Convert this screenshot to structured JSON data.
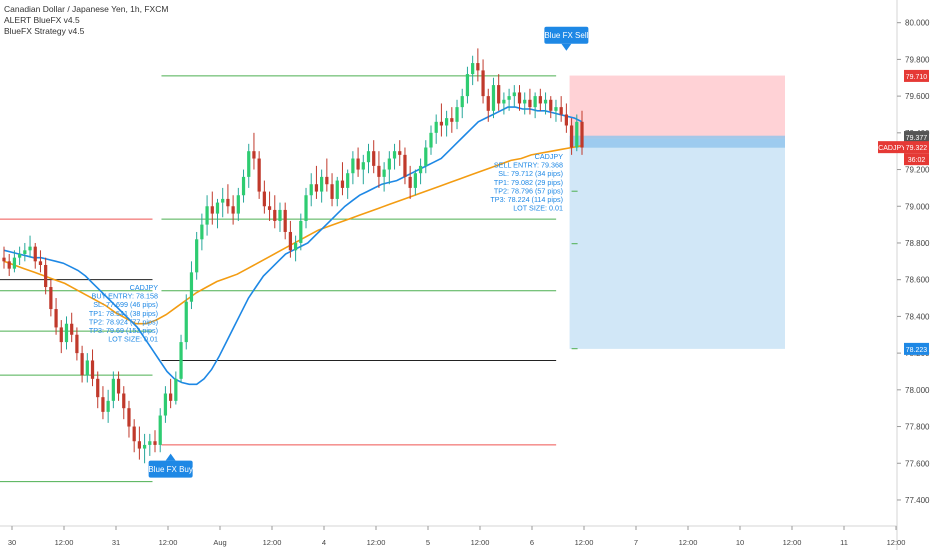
{
  "header": {
    "symbol_title": "Canadian Dollar / Japanese Yen, 1h, FXCM",
    "indicators": [
      "ALERT BlueFX v4.5",
      "BlueFX Strategy v4.5"
    ]
  },
  "colors": {
    "bull": "#26a69a",
    "bull_body": "#2ecc71",
    "bear": "#c0392b",
    "fast_ma": "#1e88e5",
    "slow_ma": "#f39c12",
    "sl_line": "#ef5350",
    "tp_line": "#4caf50",
    "entry_line": "#222222",
    "signal_box": "#1e88e5",
    "loss_zone": "#ffcdd2",
    "profit_zone": "#cfe6f7",
    "annotation_text": "#1e88e5",
    "red_tag": "#e53935",
    "blue_tag": "#1e88e5",
    "gray_tag": "#555555"
  },
  "chart_data": {
    "type": "candlestick",
    "x_axis_labels": [
      "30",
      "12:00",
      "31",
      "12:00",
      "Aug",
      "12:00",
      "4",
      "12:00",
      "5",
      "12:00",
      "6",
      "12:00",
      "7",
      "12:00",
      "10",
      "12:00",
      "11",
      "12:00"
    ],
    "y_ticks": [
      "80.000",
      "79.800",
      "79.600",
      "79.400",
      "79.200",
      "79.000",
      "78.800",
      "78.600",
      "78.400",
      "78.200",
      "78.000",
      "77.800",
      "77.600",
      "77.400"
    ],
    "y_range": [
      77.28,
      80.08
    ],
    "price_tags": [
      {
        "label": "",
        "value": "79.710",
        "kind": "red"
      },
      {
        "label": "",
        "value": "79.377",
        "kind": "gray"
      },
      {
        "label": "CADJPY",
        "value": "79.322",
        "kind": "red",
        "sub": "36:02"
      },
      {
        "label": "",
        "value": "78.223",
        "kind": "blue"
      }
    ],
    "candles_ohlc": [
      [
        78.72,
        78.78,
        78.66,
        78.7
      ],
      [
        78.7,
        78.74,
        78.62,
        78.66
      ],
      [
        78.66,
        78.76,
        78.64,
        78.72
      ],
      [
        78.72,
        78.78,
        78.68,
        78.74
      ],
      [
        78.74,
        78.8,
        78.7,
        78.76
      ],
      [
        78.76,
        78.84,
        78.72,
        78.78
      ],
      [
        78.78,
        78.8,
        78.66,
        78.7
      ],
      [
        78.7,
        78.76,
        78.64,
        78.68
      ],
      [
        78.68,
        78.72,
        78.52,
        78.56
      ],
      [
        78.56,
        78.6,
        78.4,
        78.44
      ],
      [
        78.44,
        78.5,
        78.3,
        78.34
      ],
      [
        78.34,
        78.38,
        78.2,
        78.26
      ],
      [
        78.26,
        78.4,
        78.22,
        78.36
      ],
      [
        78.36,
        78.42,
        78.26,
        78.3
      ],
      [
        78.3,
        78.34,
        78.16,
        78.2
      ],
      [
        78.2,
        78.24,
        78.04,
        78.08
      ],
      [
        78.08,
        78.2,
        78.04,
        78.16
      ],
      [
        78.16,
        78.22,
        78.02,
        78.06
      ],
      [
        78.06,
        78.1,
        77.9,
        77.96
      ],
      [
        77.96,
        78.02,
        77.84,
        77.88
      ],
      [
        77.88,
        78.0,
        77.82,
        77.94
      ],
      [
        77.94,
        78.1,
        77.9,
        78.06
      ],
      [
        78.06,
        78.1,
        77.94,
        77.98
      ],
      [
        77.98,
        78.02,
        77.84,
        77.9
      ],
      [
        77.9,
        77.94,
        77.74,
        77.8
      ],
      [
        77.8,
        77.84,
        77.66,
        77.72
      ],
      [
        77.72,
        77.8,
        77.62,
        77.68
      ],
      [
        77.68,
        77.76,
        77.6,
        77.7
      ],
      [
        77.7,
        77.76,
        77.64,
        77.72
      ],
      [
        77.72,
        77.78,
        77.66,
        77.7
      ],
      [
        77.7,
        77.9,
        77.66,
        77.86
      ],
      [
        77.86,
        78.02,
        77.82,
        77.98
      ],
      [
        77.98,
        78.06,
        77.9,
        77.94
      ],
      [
        77.94,
        78.1,
        77.92,
        78.06
      ],
      [
        78.06,
        78.3,
        78.04,
        78.26
      ],
      [
        78.26,
        78.52,
        78.22,
        78.48
      ],
      [
        78.48,
        78.7,
        78.44,
        78.64
      ],
      [
        78.64,
        78.86,
        78.6,
        78.82
      ],
      [
        78.82,
        78.96,
        78.76,
        78.9
      ],
      [
        78.9,
        79.06,
        78.84,
        79.0
      ],
      [
        79.0,
        79.08,
        78.9,
        78.96
      ],
      [
        78.96,
        79.04,
        78.88,
        79.02
      ],
      [
        79.02,
        79.1,
        78.94,
        79.04
      ],
      [
        79.04,
        79.12,
        78.96,
        79.0
      ],
      [
        79.0,
        79.06,
        78.9,
        78.96
      ],
      [
        78.96,
        79.1,
        78.92,
        79.06
      ],
      [
        79.06,
        79.2,
        79.02,
        79.16
      ],
      [
        79.16,
        79.34,
        79.1,
        79.3
      ],
      [
        79.3,
        79.4,
        79.2,
        79.26
      ],
      [
        79.26,
        79.3,
        79.04,
        79.08
      ],
      [
        79.08,
        79.14,
        78.96,
        79.0
      ],
      [
        79.0,
        79.08,
        78.92,
        78.98
      ],
      [
        78.98,
        79.06,
        78.88,
        78.92
      ],
      [
        78.92,
        79.02,
        78.86,
        78.98
      ],
      [
        78.98,
        79.02,
        78.82,
        78.86
      ],
      [
        78.86,
        78.92,
        78.72,
        78.76
      ],
      [
        78.76,
        78.84,
        78.7,
        78.8
      ],
      [
        78.8,
        78.96,
        78.76,
        78.92
      ],
      [
        78.92,
        79.1,
        78.88,
        79.06
      ],
      [
        79.06,
        79.18,
        79.0,
        79.12
      ],
      [
        79.12,
        79.22,
        79.04,
        79.08
      ],
      [
        79.08,
        79.2,
        79.02,
        79.16
      ],
      [
        79.16,
        79.26,
        79.08,
        79.12
      ],
      [
        79.12,
        79.18,
        79.0,
        79.04
      ],
      [
        79.04,
        79.16,
        79.0,
        79.14
      ],
      [
        79.14,
        79.24,
        79.06,
        79.1
      ],
      [
        79.1,
        79.2,
        79.04,
        79.18
      ],
      [
        79.18,
        79.3,
        79.12,
        79.26
      ],
      [
        79.26,
        79.32,
        79.16,
        79.2
      ],
      [
        79.2,
        79.28,
        79.12,
        79.24
      ],
      [
        79.24,
        79.34,
        79.18,
        79.3
      ],
      [
        79.3,
        79.36,
        79.18,
        79.22
      ],
      [
        79.22,
        79.3,
        79.1,
        79.16
      ],
      [
        79.16,
        79.24,
        79.08,
        79.2
      ],
      [
        79.2,
        79.3,
        79.12,
        79.26
      ],
      [
        79.26,
        79.34,
        79.2,
        79.3
      ],
      [
        79.3,
        79.36,
        79.22,
        79.28
      ],
      [
        79.28,
        79.32,
        79.12,
        79.16
      ],
      [
        79.16,
        79.22,
        79.04,
        79.1
      ],
      [
        79.1,
        79.2,
        79.06,
        79.18
      ],
      [
        79.18,
        79.26,
        79.12,
        79.22
      ],
      [
        79.22,
        79.36,
        79.18,
        79.32
      ],
      [
        79.32,
        79.44,
        79.28,
        79.4
      ],
      [
        79.4,
        79.5,
        79.34,
        79.46
      ],
      [
        79.46,
        79.56,
        79.38,
        79.44
      ],
      [
        79.44,
        79.52,
        79.38,
        79.48
      ],
      [
        79.48,
        79.54,
        79.4,
        79.46
      ],
      [
        79.46,
        79.58,
        79.42,
        79.54
      ],
      [
        79.54,
        79.64,
        79.48,
        79.6
      ],
      [
        79.6,
        79.76,
        79.56,
        79.72
      ],
      [
        79.72,
        79.82,
        79.66,
        79.78
      ],
      [
        79.78,
        79.86,
        79.68,
        79.74
      ],
      [
        79.74,
        79.8,
        79.56,
        79.6
      ],
      [
        79.6,
        79.64,
        79.46,
        79.52
      ],
      [
        79.52,
        79.7,
        79.48,
        79.66
      ],
      [
        79.66,
        79.72,
        79.52,
        79.56
      ],
      [
        79.56,
        79.62,
        79.5,
        79.58
      ],
      [
        79.58,
        79.64,
        79.52,
        79.6
      ],
      [
        79.6,
        79.66,
        79.54,
        79.62
      ],
      [
        79.62,
        79.66,
        79.52,
        79.56
      ],
      [
        79.56,
        79.62,
        79.5,
        79.58
      ],
      [
        79.58,
        79.64,
        79.5,
        79.54
      ],
      [
        79.54,
        79.62,
        79.48,
        79.6
      ],
      [
        79.6,
        79.64,
        79.52,
        79.56
      ],
      [
        79.56,
        79.62,
        79.5,
        79.58
      ],
      [
        79.58,
        79.6,
        79.48,
        79.52
      ],
      [
        79.52,
        79.58,
        79.46,
        79.54
      ],
      [
        79.54,
        79.6,
        79.46,
        79.5
      ],
      [
        79.5,
        79.56,
        79.4,
        79.44
      ],
      [
        79.44,
        79.48,
        79.28,
        79.32
      ],
      [
        79.32,
        79.5,
        79.3,
        79.46
      ],
      [
        79.46,
        79.52,
        79.28,
        79.32
      ]
    ],
    "fast_ma": [
      78.76,
      78.75,
      78.74,
      78.73,
      78.72,
      78.72,
      78.71,
      78.7,
      78.69,
      78.67,
      78.65,
      78.62,
      78.58,
      78.54,
      78.5,
      78.46,
      78.42,
      78.38,
      78.34,
      78.28,
      78.22,
      78.16,
      78.1,
      78.06,
      78.04,
      78.03,
      78.03,
      78.06,
      78.11,
      78.18,
      78.26,
      78.34,
      78.42,
      78.5,
      78.56,
      78.62,
      78.66,
      78.7,
      78.74,
      78.76,
      78.78,
      78.8,
      78.84,
      78.88,
      78.92,
      78.96,
      79.0,
      79.03,
      79.06,
      79.08,
      79.1,
      79.12,
      79.13,
      79.14,
      79.16,
      79.18,
      79.2,
      79.22,
      79.24,
      79.26,
      79.3,
      79.34,
      79.38,
      79.42,
      79.46,
      79.48,
      79.5,
      79.52,
      79.54,
      79.54,
      79.53,
      79.53,
      79.52,
      79.52,
      79.51,
      79.5,
      79.49,
      79.48,
      79.46
    ],
    "slow_ma": [
      78.7,
      78.68,
      78.66,
      78.64,
      78.62,
      78.6,
      78.58,
      78.55,
      78.52,
      78.49,
      78.46,
      78.42,
      78.39,
      78.36,
      78.36,
      78.38,
      78.41,
      78.45,
      78.49,
      78.53,
      78.56,
      78.59,
      78.61,
      78.63,
      78.66,
      78.69,
      78.72,
      78.75,
      78.78,
      78.81,
      78.84,
      78.87,
      78.89,
      78.91,
      78.93,
      78.95,
      78.97,
      78.99,
      79.01,
      79.03,
      79.05,
      79.07,
      79.09,
      79.11,
      79.13,
      79.15,
      79.17,
      79.19,
      79.21,
      79.23,
      79.25,
      79.26,
      79.28,
      79.29,
      79.3,
      79.31,
      79.32,
      79.33
    ],
    "horizontal_levels": [
      {
        "price": 78.93,
        "color": "sl_line",
        "from_x": 0.0,
        "to_x": 0.17
      },
      {
        "price": 78.6,
        "color": "entry_line",
        "from_x": 0.0,
        "to_x": 0.17
      },
      {
        "price": 78.54,
        "color": "tp_line",
        "from_x": 0.0,
        "to_x": 0.17
      },
      {
        "price": 78.32,
        "color": "tp_line",
        "from_x": 0.0,
        "to_x": 0.17
      },
      {
        "price": 78.08,
        "color": "tp_line",
        "from_x": 0.0,
        "to_x": 0.17
      },
      {
        "price": 77.5,
        "color": "tp_line",
        "from_x": 0.0,
        "to_x": 0.17
      },
      {
        "price": 79.71,
        "color": "tp_line",
        "from_x": 0.18,
        "to_x": 0.62
      },
      {
        "price": 78.93,
        "color": "tp_line",
        "from_x": 0.18,
        "to_x": 0.62
      },
      {
        "price": 78.54,
        "color": "tp_line",
        "from_x": 0.18,
        "to_x": 0.62
      },
      {
        "price": 78.16,
        "color": "entry_line",
        "from_x": 0.18,
        "to_x": 0.62
      },
      {
        "price": 77.7,
        "color": "sl_line",
        "from_x": 0.18,
        "to_x": 0.62
      }
    ],
    "signals": [
      {
        "label": "Blue FX Buy",
        "price": 77.68,
        "position": "below",
        "candle": 32
      },
      {
        "label": "Blue FX Sell",
        "price": 79.82,
        "position": "above",
        "candle": 108
      }
    ],
    "buy_annotation": [
      "CADJPY",
      "BUY ENTRY: 78.158",
      "SL: 77.699 (46 pips)",
      "TP1: 78.541 (38 pips)",
      "TP2: 78.924 (77 pips)",
      "TP3: 79.69 (153 pips)",
      "LOT SIZE: 0.01"
    ],
    "sell_annotation": [
      "CADJPY",
      "SELL ENTRY: 79.368",
      "SL: 79.712 (34 pips)",
      "TP1: 79.082 (29 pips)",
      "TP2: 78.796 (57 pips)",
      "TP3: 78.224 (114 pips)",
      "LOT SIZE: 0.01"
    ],
    "position_box": {
      "entry": 79.368,
      "stop": 79.712,
      "target": 78.223
    },
    "sell_tp_ticks": [
      79.082,
      78.796,
      78.224
    ]
  }
}
